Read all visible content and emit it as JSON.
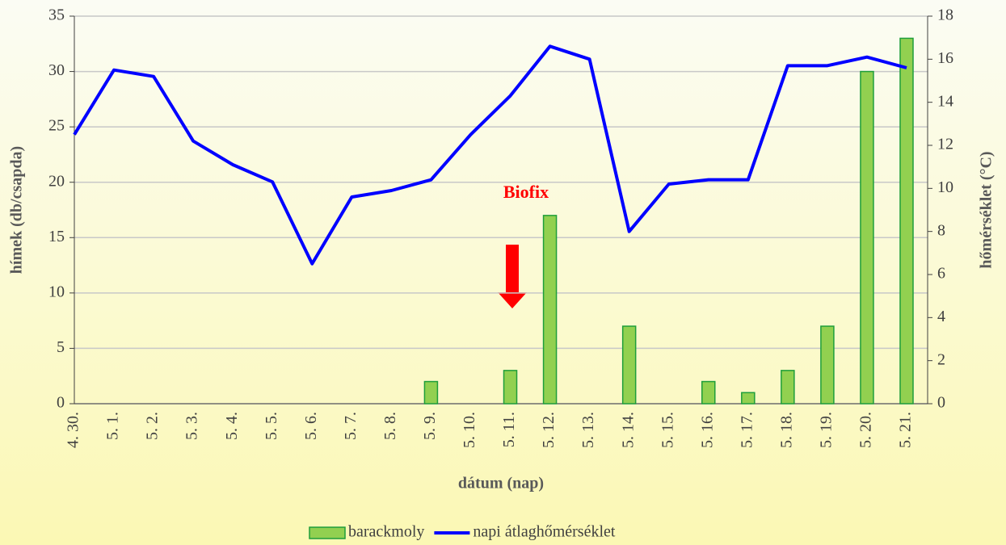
{
  "chart_data": {
    "type": "bar_line",
    "annotation": "Biofix",
    "x_label": "dátum (nap)",
    "y_label": "hímek (db/csapda)",
    "y2_label": "hőmérséklet (°C)",
    "categories": [
      "4. 30.",
      "5. 1.",
      "5. 2.",
      "5. 3.",
      "5. 4.",
      "5. 5.",
      "5. 6.",
      "5. 7.",
      "5. 8.",
      "5. 9.",
      "5. 10.",
      "5. 11.",
      "5. 12.",
      "5. 13.",
      "5. 14.",
      "5. 15.",
      "5. 16.",
      "5. 17.",
      "5. 18.",
      "5. 19.",
      "5. 20.",
      "5. 21."
    ],
    "series": [
      {
        "name": "barackmoly",
        "color": "#92d050",
        "type": "bar",
        "values": [
          0,
          0,
          0,
          0,
          0,
          0,
          0,
          0,
          0,
          2,
          0,
          3,
          17,
          0,
          7,
          0,
          2,
          1,
          3,
          7,
          30,
          33
        ]
      },
      {
        "name": "napi átlaghőmérséklet",
        "color": "#0000ff",
        "type": "line",
        "axis": "y2",
        "values": [
          12.5,
          15.5,
          15.2,
          12.2,
          11.1,
          10.3,
          6.5,
          9.6,
          9.9,
          10.4,
          12.5,
          14.3,
          16.6,
          16.0,
          8.0,
          10.2,
          10.4,
          10.4,
          15.7,
          15.7,
          16.1,
          15.6
        ]
      }
    ],
    "ylim": [
      0,
      35
    ],
    "yticks": [
      0,
      5,
      10,
      15,
      20,
      25,
      30,
      35
    ],
    "y2lim": [
      0,
      18
    ],
    "y2ticks": [
      0,
      2,
      4,
      6,
      8,
      10,
      12,
      14,
      16,
      18
    ],
    "grid": true
  }
}
